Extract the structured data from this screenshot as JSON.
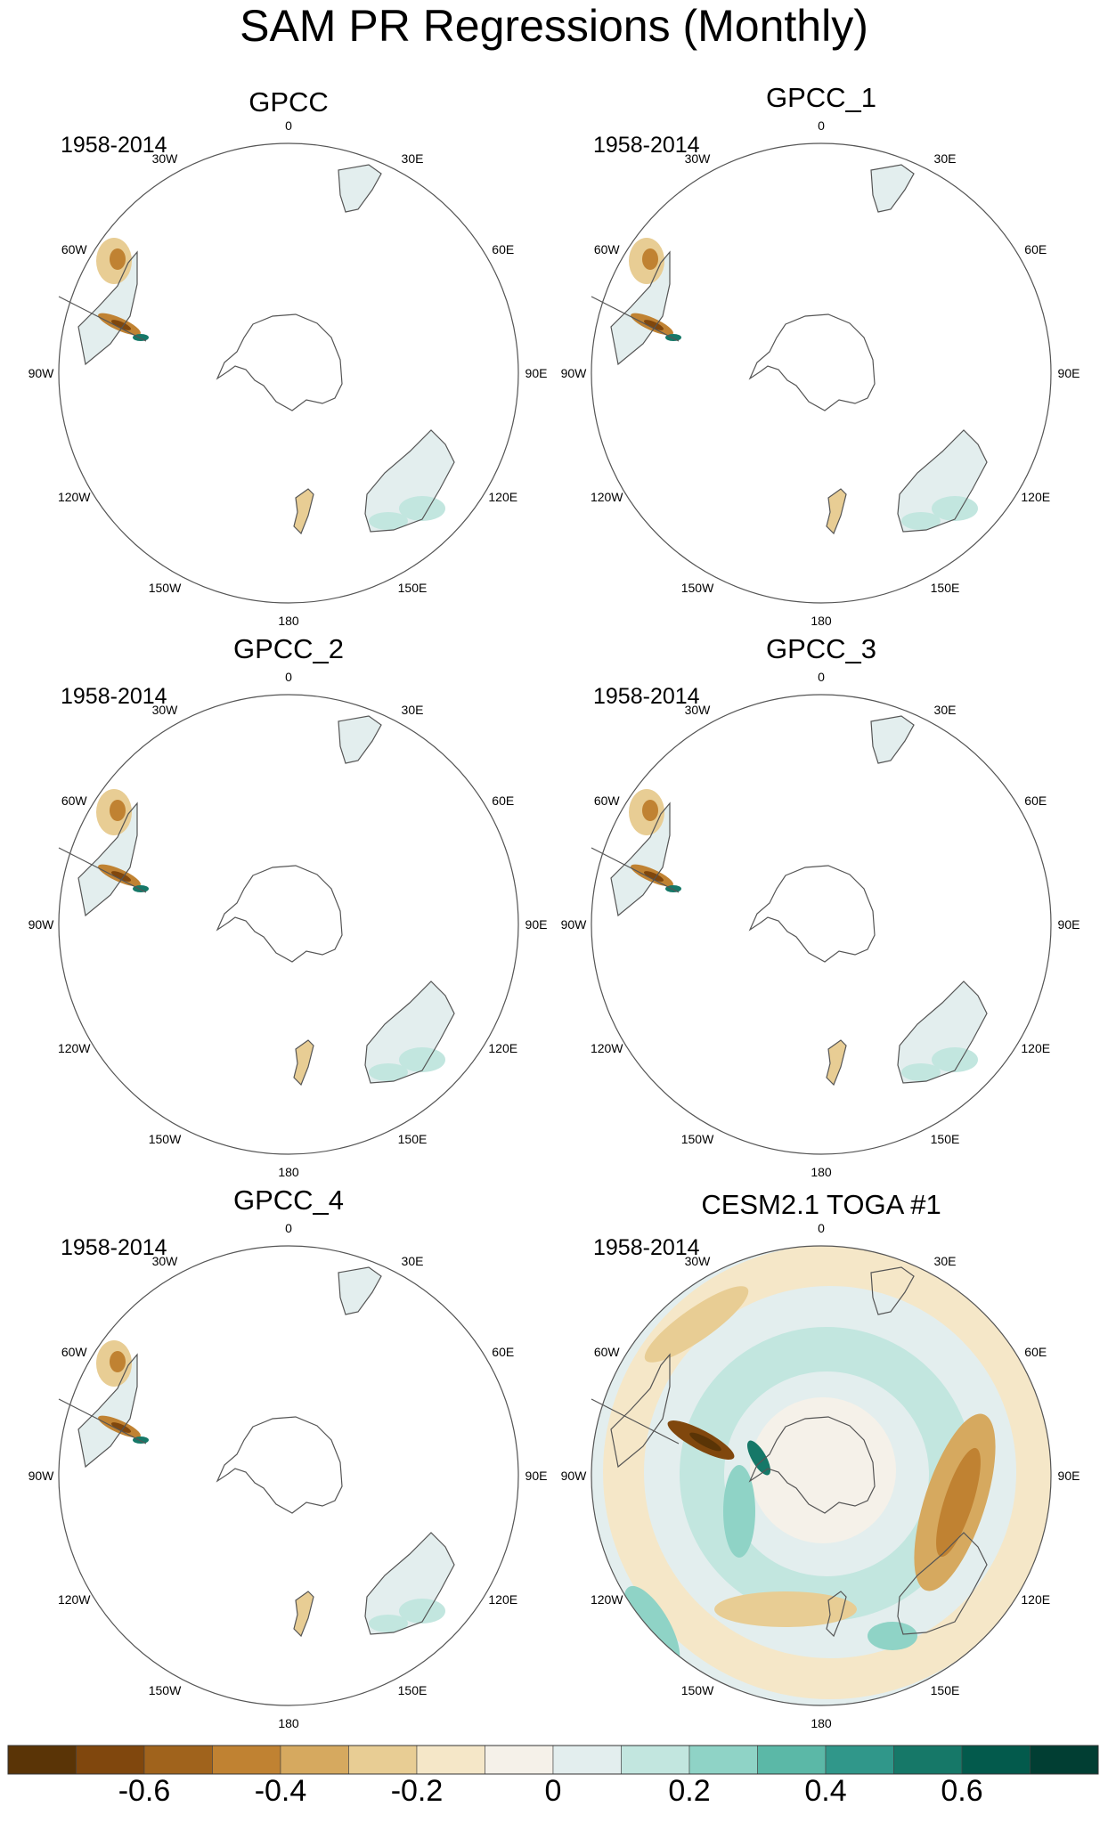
{
  "chart_data": {
    "type": "polar-map-panels",
    "title": "SAM PR Regressions (Monthly)",
    "projection": "south polar stereographic",
    "longitude_labels": [
      "0",
      "30E",
      "60E",
      "90E",
      "120E",
      "150E",
      "180",
      "150W",
      "120W",
      "90W",
      "60W",
      "30W"
    ],
    "panels": [
      {
        "title": "GPCC",
        "period": "1958-2014",
        "coverage": "land"
      },
      {
        "title": "GPCC_1",
        "period": "1958-2014",
        "coverage": "land"
      },
      {
        "title": "GPCC_2",
        "period": "1958-2014",
        "coverage": "land"
      },
      {
        "title": "GPCC_3",
        "period": "1958-2014",
        "coverage": "land"
      },
      {
        "title": "GPCC_4",
        "period": "1958-2014",
        "coverage": "land"
      },
      {
        "title": "CESM2.1 TOGA #1",
        "period": "1958-2014",
        "coverage": "global"
      }
    ],
    "colorbar": {
      "levels": [
        -0.7,
        -0.6,
        -0.5,
        -0.4,
        -0.3,
        -0.2,
        -0.1,
        0,
        0.1,
        0.2,
        0.3,
        0.4,
        0.5,
        0.6,
        0.7
      ],
      "tick_labels": [
        "-0.6",
        "-0.4",
        "-0.2",
        "0",
        "0.2",
        "0.4",
        "0.6"
      ],
      "tick_values": [
        -0.6,
        -0.4,
        -0.2,
        0,
        0.2,
        0.4,
        0.6
      ],
      "colors": [
        "#5a3406",
        "#80470d",
        "#a0631c",
        "#c08232",
        "#d6a95f",
        "#e8cd94",
        "#f5e7c8",
        "#f5f1e9",
        "#e3eeee",
        "#c2e6df",
        "#8fd3c6",
        "#5bb8a7",
        "#30978a",
        "#167868",
        "#035a4c",
        "#013e33"
      ]
    }
  }
}
